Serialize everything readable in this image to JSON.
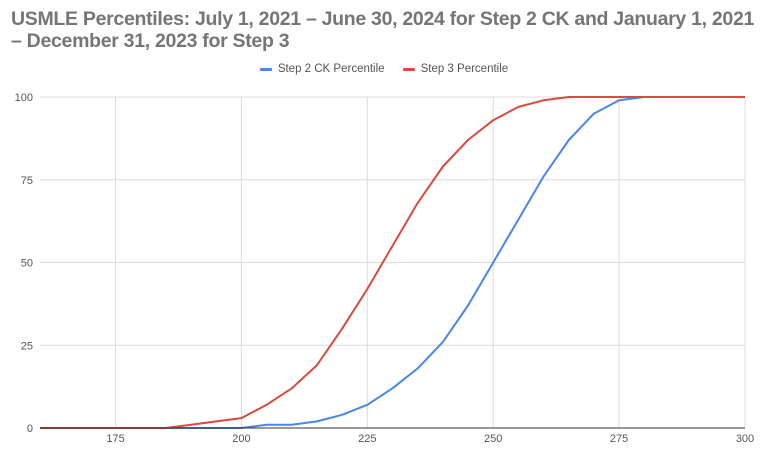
{
  "title": "USMLE Percentiles: July 1, 2021 – June 30, 2024 for Step 2 CK and January 1, 2021 – December 31, 2023 for Step 3",
  "legend": [
    {
      "label": "Step 2 CK Percentile",
      "color": "#4a86e8"
    },
    {
      "label": "Step 3 Percentile",
      "color": "#d94a3f"
    }
  ],
  "chart_data": {
    "type": "line",
    "title": "USMLE Percentiles: July 1, 2021 – June 30, 2024 for Step 2 CK and January 1, 2021 – December 31, 2023 for Step 3",
    "xlabel": "",
    "ylabel": "",
    "xlim": [
      160,
      300
    ],
    "ylim": [
      0,
      100
    ],
    "x_ticks": [
      175,
      200,
      225,
      250,
      275,
      300
    ],
    "y_ticks": [
      0,
      25,
      50,
      75,
      100
    ],
    "grid": true,
    "legend_position": "top",
    "x": [
      160,
      165,
      170,
      175,
      180,
      185,
      190,
      195,
      200,
      205,
      210,
      215,
      220,
      225,
      230,
      235,
      240,
      245,
      250,
      255,
      260,
      265,
      270,
      275,
      280,
      285,
      290,
      295,
      300
    ],
    "series": [
      {
        "name": "Step 2 CK Percentile",
        "color": "#4a86e8",
        "values": [
          0,
          0,
          0,
          0,
          0,
          0,
          0,
          0,
          0,
          1,
          1,
          2,
          4,
          7,
          12,
          18,
          26,
          37,
          50,
          63,
          76,
          87,
          95,
          99,
          100,
          100,
          100,
          100,
          100
        ]
      },
      {
        "name": "Step 3 Percentile",
        "color": "#d94a3f",
        "values": [
          0,
          0,
          0,
          0,
          0,
          0,
          1,
          2,
          3,
          7,
          12,
          19,
          30,
          42,
          55,
          68,
          79,
          87,
          93,
          97,
          99,
          100,
          100,
          100,
          100,
          100,
          100,
          100,
          100
        ]
      }
    ]
  }
}
